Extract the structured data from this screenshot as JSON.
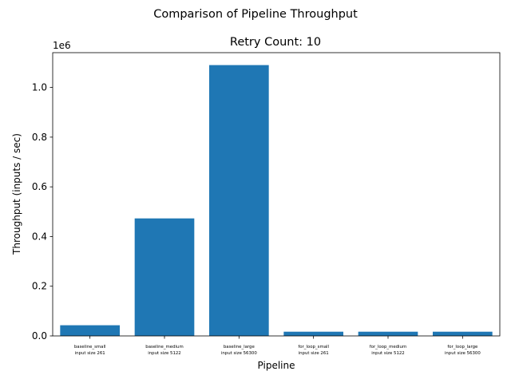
{
  "chart_data": {
    "type": "bar",
    "suptitle": "Comparison of Pipeline Throughput",
    "title": "Retry Count: 10",
    "xlabel": "Pipeline",
    "ylabel": "Throughput (inputs / sec)",
    "scale_label": "1e6",
    "ylim": [
      0,
      1140000
    ],
    "yticks": [
      {
        "value": 0,
        "label": "0.0"
      },
      {
        "value": 200000,
        "label": "0.2"
      },
      {
        "value": 400000,
        "label": "0.4"
      },
      {
        "value": 600000,
        "label": "0.6"
      },
      {
        "value": 800000,
        "label": "0.8"
      },
      {
        "value": 1000000,
        "label": "1.0"
      }
    ],
    "categories": [
      {
        "line1": "baseline_small",
        "line2": "input size 261"
      },
      {
        "line1": "baseline_medium",
        "line2": "input size 5122"
      },
      {
        "line1": "baseline_large",
        "line2": "input size 56300"
      },
      {
        "line1": "for_loop_small",
        "line2": "input size 261"
      },
      {
        "line1": "for_loop_medium",
        "line2": "input size 5122"
      },
      {
        "line1": "for_loop_large",
        "line2": "input size 56300"
      }
    ],
    "values": [
      43000,
      473000,
      1090000,
      17000,
      17000,
      17000
    ],
    "bar_color": "#1f77b4",
    "grid": false
  }
}
